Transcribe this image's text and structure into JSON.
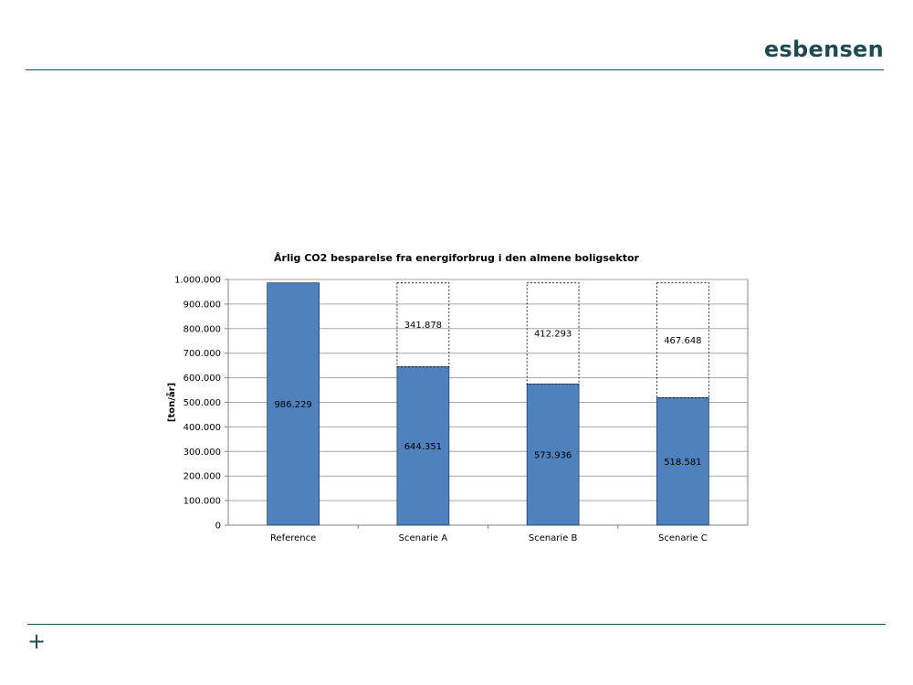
{
  "header": {
    "brand": "esbensen"
  },
  "footer": {
    "plus_glyph": "+"
  },
  "chart_data": {
    "type": "bar",
    "title": "Årlig CO2 besparelse fra energiforbrug i den almene boligsektor",
    "xlabel": "",
    "ylabel": "[ton/år]",
    "categories": [
      "Reference",
      "Scenarie A",
      "Scenarie B",
      "Scenarie C"
    ],
    "series": [
      {
        "values": [
          986229,
          644351,
          573936,
          518581
        ],
        "value_labels": [
          "986.229",
          "644.351",
          "573.936",
          "518.581"
        ]
      },
      {
        "values": [
          0,
          341878,
          412293,
          467648
        ],
        "value_labels": [
          "",
          "341.878",
          "412.293",
          "467.648"
        ]
      }
    ],
    "ylim": [
      0,
      1000000
    ],
    "yticks": [
      0,
      100000,
      200000,
      300000,
      400000,
      500000,
      600000,
      700000,
      800000,
      900000,
      1000000
    ],
    "ytick_labels": [
      "0",
      "100.000",
      "200.000",
      "300.000",
      "400.000",
      "500.000",
      "600.000",
      "700.000",
      "800.000",
      "900.000",
      "1.000.000"
    ],
    "grid": true,
    "stacked": true,
    "colors": {
      "bar": "#4f81bd",
      "bar_border": "#1f3f6b",
      "grid": "#a6a6a6",
      "axis": "#808080"
    }
  }
}
